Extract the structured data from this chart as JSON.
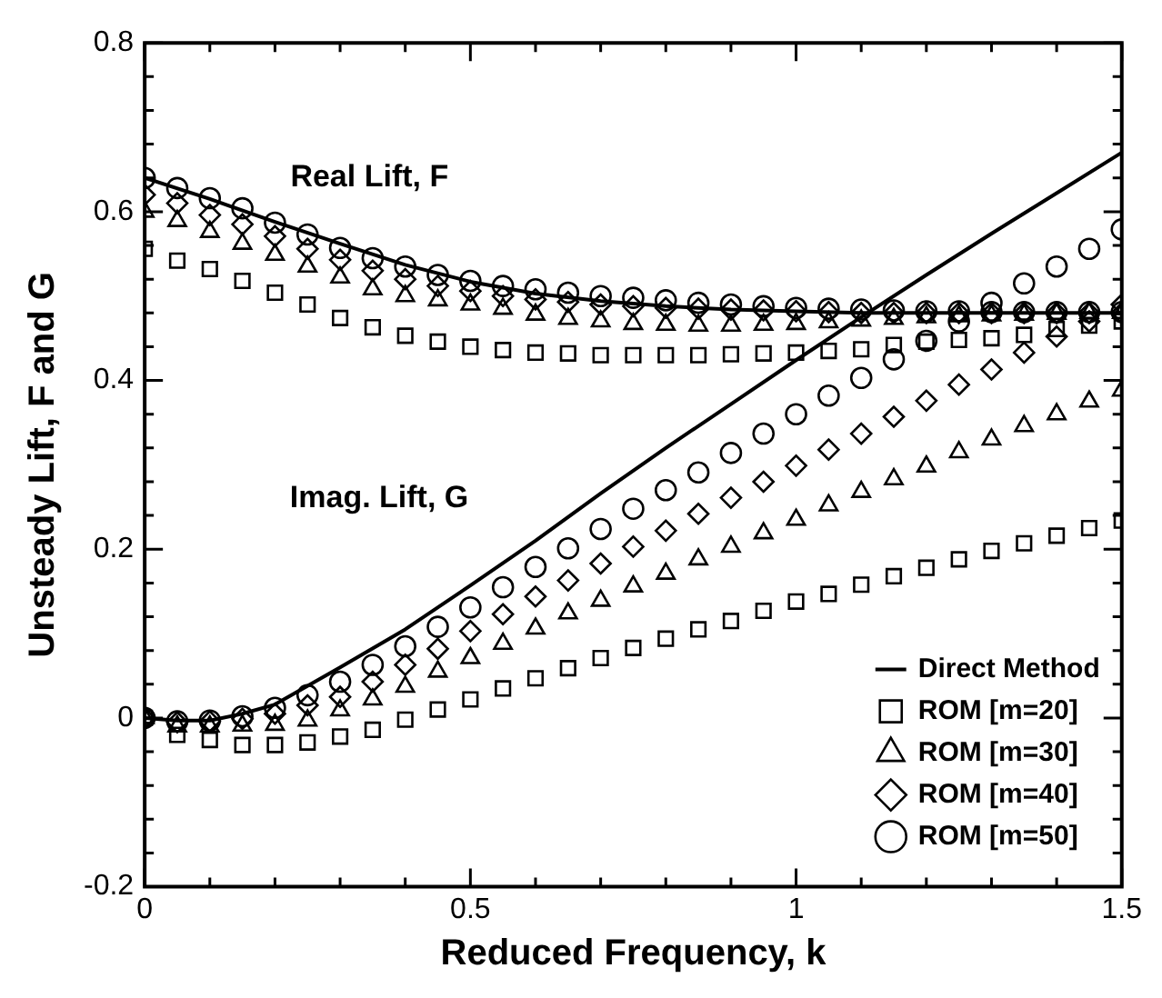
{
  "chart_data": {
    "type": "scatter",
    "xlabel": "Reduced Frequency, k",
    "ylabel": "Unsteady Lift, F and G",
    "xlim": [
      0,
      1.5
    ],
    "ylim": [
      -0.2,
      0.8
    ],
    "xticks": [
      0,
      {
        "value": 0.1,
        "label": null
      },
      {
        "value": 0.2,
        "label": null
      },
      {
        "value": 0.3,
        "label": null
      },
      {
        "value": 0.4,
        "label": null
      },
      0.5,
      {
        "value": 0.6,
        "label": null
      },
      {
        "value": 0.7,
        "label": null
      },
      {
        "value": 0.8,
        "label": null
      },
      {
        "value": 0.9,
        "label": null
      },
      1,
      {
        "value": 1.1,
        "label": null
      },
      {
        "value": 1.2,
        "label": null
      },
      {
        "value": 1.3,
        "label": null
      },
      {
        "value": 1.4,
        "label": null
      },
      1.5
    ],
    "yticks": [
      -0.2,
      {
        "value": -0.16,
        "label": null
      },
      {
        "value": -0.12,
        "label": null
      },
      {
        "value": -0.08,
        "label": null
      },
      {
        "value": -0.04,
        "label": null
      },
      0,
      {
        "value": 0.04,
        "label": null
      },
      {
        "value": 0.08,
        "label": null
      },
      {
        "value": 0.12,
        "label": null
      },
      {
        "value": 0.16,
        "label": null
      },
      0.2,
      {
        "value": 0.24,
        "label": null
      },
      {
        "value": 0.28,
        "label": null
      },
      {
        "value": 0.32,
        "label": null
      },
      {
        "value": 0.36,
        "label": null
      },
      0.4,
      {
        "value": 0.44,
        "label": null
      },
      {
        "value": 0.48,
        "label": null
      },
      {
        "value": 0.52,
        "label": null
      },
      {
        "value": 0.56,
        "label": null
      },
      0.6,
      {
        "value": 0.64,
        "label": null
      },
      {
        "value": 0.68,
        "label": null
      },
      {
        "value": 0.72,
        "label": null
      },
      {
        "value": 0.76,
        "label": null
      },
      0.8
    ],
    "legend": "bottom right",
    "annotations": [
      "Real Lift, F",
      "Imag. Lift, G"
    ],
    "x": [
      0,
      0.05,
      0.1,
      0.15,
      0.2,
      0.25,
      0.3,
      0.35,
      0.4,
      0.45,
      0.5,
      0.55,
      0.6,
      0.65,
      0.7,
      0.75,
      0.8,
      0.85,
      0.9,
      0.95,
      1,
      1.05,
      1.1,
      1.15,
      1.2,
      1.25,
      1.3,
      1.35,
      1.4,
      1.45,
      1.5,
      0,
      0.05,
      0.1,
      0.15,
      0.2,
      0.25,
      0.3,
      0.35,
      0.4,
      0.45,
      0.5,
      0.55,
      0.6,
      0.65,
      0.7,
      0.75,
      0.8,
      0.85,
      0.9,
      0.95,
      1,
      1.05,
      1.1,
      1.15,
      1.2,
      1.25,
      1.3,
      1.35,
      1.4,
      1.45,
      1.5
    ],
    "series": [
      {
        "name": "Direct Method",
        "type": "line",
        "marker": "none",
        "line_style": "solid",
        "color": "#000000",
        "x": [
          0,
          0.1,
          0.2,
          0.3,
          0.4,
          0.5,
          0.6,
          0.7,
          0.8,
          0.9,
          1,
          1.1,
          1.2,
          1.3,
          1.4,
          1.5
        ],
        "values": [
          0.64,
          0.615,
          0.588,
          0.562,
          0.537,
          0.517,
          0.503,
          0.494,
          0.488,
          0.484,
          0.482,
          0.48,
          0.48,
          0.48,
          0.48,
          0.48
        ]
      },
      {
        "type": "line",
        "marker": "none",
        "line_style": "solid",
        "color": "#000000",
        "x": [
          0,
          0.05,
          0.1,
          0.15,
          0.2,
          0.3,
          0.4,
          0.5,
          0.6,
          0.7,
          0.8,
          0.9,
          1,
          1.1,
          1.2,
          1.3,
          1.4,
          1.5
        ],
        "values": [
          0,
          -0.003,
          -0.003,
          0.005,
          0.016,
          0.06,
          0.105,
          0.157,
          0.21,
          0.266,
          0.32,
          0.372,
          0.424,
          0.475,
          0.525,
          0.574,
          0.622,
          0.67
        ]
      },
      {
        "name": "ROM [m=20]",
        "marker": "square",
        "color": "#000000",
        "values": [
          0.556,
          0.542,
          0.532,
          0.518,
          0.504,
          0.49,
          0.474,
          0.463,
          0.453,
          0.446,
          0.44,
          0.436,
          0.433,
          0.432,
          0.43,
          0.43,
          0.43,
          0.43,
          0.431,
          0.432,
          0.433,
          0.435,
          0.437,
          0.442,
          0.446,
          0.448,
          0.45,
          0.454,
          0.461,
          0.465,
          0.47,
          0,
          -0.02,
          -0.026,
          -0.032,
          -0.032,
          -0.029,
          -0.022,
          -0.014,
          -0.002,
          0.01,
          0.022,
          0.035,
          0.047,
          0.059,
          0.071,
          0.083,
          0.094,
          0.105,
          0.115,
          0.127,
          0.138,
          0.147,
          0.158,
          0.168,
          0.178,
          0.188,
          0.198,
          0.207,
          0.216,
          0.225,
          0.234
        ]
      },
      {
        "name": "ROM [m=30]",
        "marker": "triangle",
        "color": "#000000",
        "values": [
          0.6,
          0.589,
          0.576,
          0.562,
          0.549,
          0.535,
          0.522,
          0.508,
          0.5,
          0.495,
          0.49,
          0.485,
          0.478,
          0.473,
          0.47,
          0.467,
          0.466,
          0.465,
          0.465,
          0.466,
          0.467,
          0.469,
          0.471,
          0.473,
          0.475,
          0.476,
          0.477,
          0.478,
          0.479,
          0.48,
          0.48,
          0,
          -0.01,
          -0.01,
          -0.009,
          -0.008,
          -0.003,
          0.009,
          0.022,
          0.037,
          0.055,
          0.071,
          0.088,
          0.106,
          0.124,
          0.139,
          0.156,
          0.171,
          0.188,
          0.203,
          0.219,
          0.235,
          0.252,
          0.268,
          0.283,
          0.298,
          0.315,
          0.33,
          0.346,
          0.36,
          0.375,
          0.388
        ]
      },
      {
        "name": "ROM [m=40]",
        "marker": "diamond",
        "color": "#000000",
        "values": [
          0.62,
          0.61,
          0.596,
          0.585,
          0.571,
          0.556,
          0.543,
          0.53,
          0.52,
          0.512,
          0.506,
          0.5,
          0.496,
          0.493,
          0.49,
          0.488,
          0.486,
          0.485,
          0.484,
          0.483,
          0.482,
          0.481,
          0.48,
          0.48,
          0.48,
          0.48,
          0.48,
          0.48,
          0.48,
          0.48,
          0.48,
          0,
          -0.005,
          -0.004,
          -0.001,
          0.005,
          0.015,
          0.025,
          0.043,
          0.063,
          0.082,
          0.103,
          0.123,
          0.144,
          0.163,
          0.183,
          0.203,
          0.222,
          0.242,
          0.261,
          0.28,
          0.299,
          0.318,
          0.337,
          0.357,
          0.376,
          0.395,
          0.413,
          0.433,
          0.452,
          0.47,
          0.49
        ]
      },
      {
        "name": "ROM [m=50]",
        "marker": "circle",
        "color": "#000000",
        "values": [
          0.64,
          0.628,
          0.616,
          0.604,
          0.587,
          0.573,
          0.557,
          0.545,
          0.535,
          0.525,
          0.518,
          0.512,
          0.508,
          0.504,
          0.5,
          0.498,
          0.495,
          0.492,
          0.49,
          0.488,
          0.486,
          0.485,
          0.484,
          0.483,
          0.482,
          0.482,
          0.481,
          0.481,
          0.481,
          0.481,
          0.481,
          0,
          -0.004,
          -0.003,
          0.002,
          0.012,
          0.027,
          0.043,
          0.063,
          0.085,
          0.108,
          0.131,
          0.155,
          0.179,
          0.201,
          0.224,
          0.248,
          0.27,
          0.291,
          0.314,
          0.337,
          0.36,
          0.382,
          0.403,
          0.425,
          0.447,
          0.47,
          0.492,
          0.515,
          0.535,
          0.556,
          0.579
        ]
      }
    ]
  }
}
